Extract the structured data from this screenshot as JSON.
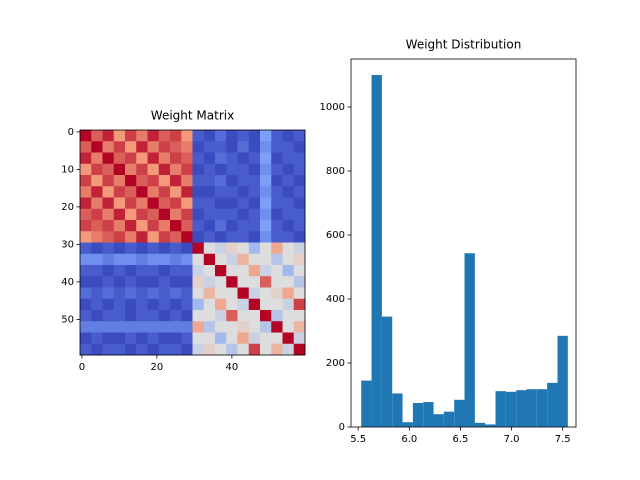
{
  "chart_data": [
    {
      "type": "heatmap",
      "title": "Weight Matrix",
      "colormap": "coolwarm",
      "xlim": [
        -0.5,
        59.5
      ],
      "ylim": [
        59.5,
        -0.5
      ],
      "xticks": [
        0,
        20,
        40
      ],
      "yticks": [
        0,
        10,
        20,
        30,
        40,
        50
      ],
      "z": [
        [
          7.5,
          7.2,
          7.4,
          7.0,
          7.3,
          7.1,
          7.4,
          7.2,
          7.3,
          7.0,
          5.6,
          5.5,
          5.7,
          5.5,
          5.6,
          5.5,
          6.0,
          5.6,
          5.5,
          5.6
        ],
        [
          7.2,
          7.5,
          7.1,
          7.3,
          7.0,
          7.4,
          7.1,
          7.3,
          7.2,
          7.1,
          5.5,
          5.6,
          5.6,
          5.5,
          5.7,
          5.5,
          5.9,
          5.6,
          5.6,
          5.5
        ],
        [
          7.4,
          7.1,
          7.5,
          7.2,
          7.3,
          7.0,
          7.4,
          7.1,
          7.3,
          7.2,
          5.6,
          5.5,
          5.7,
          5.6,
          5.5,
          5.6,
          6.0,
          5.5,
          5.6,
          5.6
        ],
        [
          7.0,
          7.3,
          7.2,
          7.5,
          7.1,
          7.3,
          7.0,
          7.4,
          7.1,
          7.3,
          5.5,
          5.6,
          5.5,
          5.6,
          5.6,
          5.5,
          5.9,
          5.6,
          5.5,
          5.6
        ],
        [
          7.3,
          7.0,
          7.3,
          7.1,
          7.5,
          7.2,
          7.3,
          7.0,
          7.4,
          7.1,
          5.6,
          5.6,
          5.7,
          5.5,
          5.6,
          5.6,
          6.0,
          5.5,
          5.6,
          5.5
        ],
        [
          7.1,
          7.4,
          7.0,
          7.3,
          7.2,
          7.5,
          7.1,
          7.3,
          7.0,
          7.4,
          5.5,
          5.5,
          5.6,
          5.6,
          5.5,
          5.6,
          5.9,
          5.6,
          5.5,
          5.6
        ],
        [
          7.4,
          7.1,
          7.4,
          7.0,
          7.3,
          7.1,
          7.5,
          7.2,
          7.3,
          7.0,
          5.6,
          5.6,
          5.5,
          5.5,
          5.6,
          5.5,
          6.0,
          5.6,
          5.6,
          5.5
        ],
        [
          7.2,
          7.3,
          7.1,
          7.4,
          7.0,
          7.3,
          7.2,
          7.5,
          7.1,
          7.3,
          5.5,
          5.6,
          5.6,
          5.6,
          5.5,
          5.6,
          5.9,
          5.5,
          5.6,
          5.6
        ],
        [
          7.3,
          7.2,
          7.3,
          7.1,
          7.4,
          7.0,
          7.3,
          7.1,
          7.5,
          7.2,
          5.6,
          5.5,
          5.7,
          5.5,
          5.6,
          5.6,
          6.0,
          5.6,
          5.5,
          5.6
        ],
        [
          7.0,
          7.1,
          7.2,
          7.3,
          7.1,
          7.4,
          7.0,
          7.3,
          7.2,
          7.5,
          5.5,
          5.6,
          5.5,
          5.6,
          5.6,
          5.5,
          5.9,
          5.6,
          5.6,
          5.5
        ],
        [
          5.6,
          5.5,
          5.6,
          5.5,
          5.6,
          5.5,
          5.6,
          5.5,
          5.6,
          5.5,
          7.5,
          6.5,
          6.4,
          6.6,
          6.5,
          6.2,
          6.5,
          6.9,
          6.5,
          6.4
        ],
        [
          5.9,
          5.9,
          5.8,
          5.9,
          5.9,
          5.8,
          5.9,
          5.9,
          5.8,
          5.9,
          6.5,
          7.5,
          6.5,
          6.4,
          6.8,
          6.5,
          6.5,
          6.3,
          6.5,
          6.6
        ],
        [
          5.6,
          5.6,
          5.5,
          5.6,
          5.5,
          5.6,
          5.6,
          5.5,
          5.6,
          5.6,
          6.4,
          6.5,
          7.5,
          6.5,
          6.5,
          6.9,
          6.4,
          6.5,
          6.2,
          6.5
        ],
        [
          5.5,
          5.5,
          5.6,
          5.5,
          5.6,
          5.5,
          5.5,
          5.6,
          5.5,
          5.5,
          6.6,
          6.4,
          6.5,
          7.5,
          6.5,
          6.5,
          7.2,
          6.5,
          6.5,
          6.3
        ],
        [
          5.7,
          5.6,
          5.7,
          5.6,
          5.7,
          5.6,
          5.7,
          5.6,
          5.7,
          5.6,
          6.5,
          6.8,
          6.5,
          6.5,
          7.5,
          6.4,
          6.5,
          6.6,
          6.9,
          6.5
        ],
        [
          5.5,
          5.6,
          5.5,
          5.6,
          5.5,
          5.6,
          5.5,
          5.6,
          5.5,
          5.6,
          6.2,
          6.5,
          6.9,
          6.5,
          6.4,
          7.5,
          6.5,
          6.5,
          6.4,
          7.3
        ],
        [
          5.6,
          5.5,
          5.6,
          5.6,
          5.5,
          5.6,
          5.6,
          5.5,
          5.6,
          5.5,
          6.5,
          6.5,
          6.4,
          7.2,
          6.5,
          6.5,
          7.5,
          6.3,
          6.5,
          6.5
        ],
        [
          5.8,
          5.8,
          5.8,
          5.8,
          5.8,
          5.8,
          5.8,
          5.8,
          5.8,
          5.8,
          6.9,
          6.3,
          6.5,
          6.5,
          6.6,
          6.5,
          6.3,
          7.5,
          6.5,
          6.8
        ],
        [
          5.5,
          5.6,
          5.5,
          5.5,
          5.6,
          5.5,
          5.6,
          5.5,
          5.5,
          5.6,
          6.5,
          6.5,
          6.2,
          6.5,
          6.9,
          6.4,
          6.5,
          6.5,
          7.5,
          6.4
        ],
        [
          5.6,
          5.5,
          5.6,
          5.6,
          5.5,
          5.6,
          5.5,
          5.6,
          5.6,
          5.5,
          6.4,
          6.6,
          6.5,
          6.3,
          6.5,
          7.3,
          6.5,
          6.8,
          6.4,
          7.5
        ]
      ]
    },
    {
      "type": "histogram",
      "title": "Weight Distribution",
      "color": "#1f77b4",
      "bins": [
        5.53,
        5.631,
        5.732,
        5.833,
        5.934,
        6.035,
        6.136,
        6.237,
        6.338,
        6.439,
        6.54,
        6.641,
        6.742,
        6.843,
        6.944,
        7.045,
        7.146,
        7.247,
        7.348,
        7.449,
        7.55
      ],
      "values": [
        145,
        1100,
        345,
        105,
        15,
        75,
        78,
        40,
        48,
        85,
        543,
        13,
        8,
        112,
        110,
        115,
        118,
        118,
        138,
        285
      ],
      "xlim": [
        5.43,
        7.63
      ],
      "ylim": [
        0,
        1150
      ],
      "xticks": [
        {
          "value": 5.5,
          "label": "5.5"
        },
        {
          "value": 6,
          "label": "6.0"
        },
        {
          "value": 6.5,
          "label": "6.5"
        },
        {
          "value": 7,
          "label": "7.0"
        },
        {
          "value": 7.5,
          "label": "7.5"
        }
      ],
      "yticks": [
        0,
        200,
        400,
        600,
        800,
        1000
      ]
    }
  ]
}
